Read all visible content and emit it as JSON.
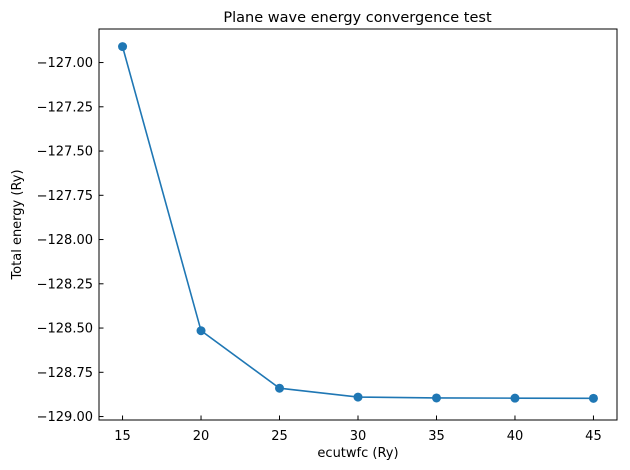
{
  "chart_data": {
    "type": "line",
    "title": "Plane wave energy convergence test",
    "xlabel": "ecutwfc (Ry)",
    "ylabel": "Total energy (Ry)",
    "x": [
      15,
      20,
      25,
      30,
      35,
      40,
      45
    ],
    "series": [
      {
        "values": [
          -126.91,
          -128.515,
          -128.84,
          -128.89,
          -128.895,
          -128.896,
          -128.897
        ],
        "color": "#1f77b4",
        "marker": "circle"
      }
    ],
    "xticks": [
      15,
      20,
      25,
      30,
      35,
      40,
      45
    ],
    "xtick_labels": [
      "15",
      "20",
      "25",
      "30",
      "35",
      "40",
      "45"
    ],
    "yticks": [
      -127.0,
      -127.25,
      -127.5,
      -127.75,
      -128.0,
      -128.25,
      -128.5,
      -128.75,
      -129.0
    ],
    "ytick_labels": [
      "−127.00",
      "−127.25",
      "−127.50",
      "−127.75",
      "−128.00",
      "−128.25",
      "−128.50",
      "−128.75",
      "−129.00"
    ],
    "xlim": [
      13.5,
      46.5
    ],
    "ylim": [
      -129.0195,
      -126.8105
    ],
    "grid": false,
    "legend": "none",
    "tick_direction": "in"
  }
}
